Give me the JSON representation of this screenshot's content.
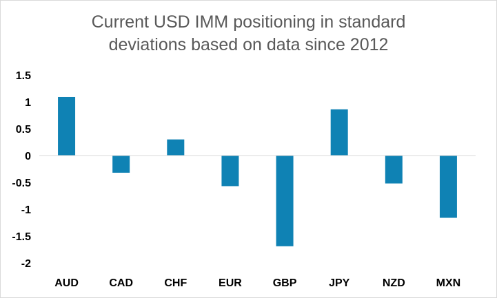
{
  "chart_data": {
    "type": "bar",
    "title_lines": [
      "Current USD IMM positioning in standard",
      "deviations based on data since 2012"
    ],
    "categories": [
      "AUD",
      "CAD",
      "CHF",
      "EUR",
      "GBP",
      "JPY",
      "NZD",
      "MXN"
    ],
    "values": [
      1.09,
      -0.32,
      0.3,
      -0.57,
      -1.69,
      0.86,
      -0.52,
      -1.16
    ],
    "ylim": [
      -2,
      1.5
    ],
    "yticks": [
      1.5,
      1,
      0.5,
      0,
      -0.5,
      -1,
      -1.5,
      -2
    ],
    "ytick_labels": [
      "1.5",
      "1",
      "0.5",
      "0",
      "-0.5",
      "-1",
      "-1.5",
      "-2"
    ],
    "xlabel": "",
    "ylabel": "",
    "grid": false,
    "legend": "none",
    "bar_color": "#0f82b4",
    "zero_line_color": "#d9d9d9"
  }
}
